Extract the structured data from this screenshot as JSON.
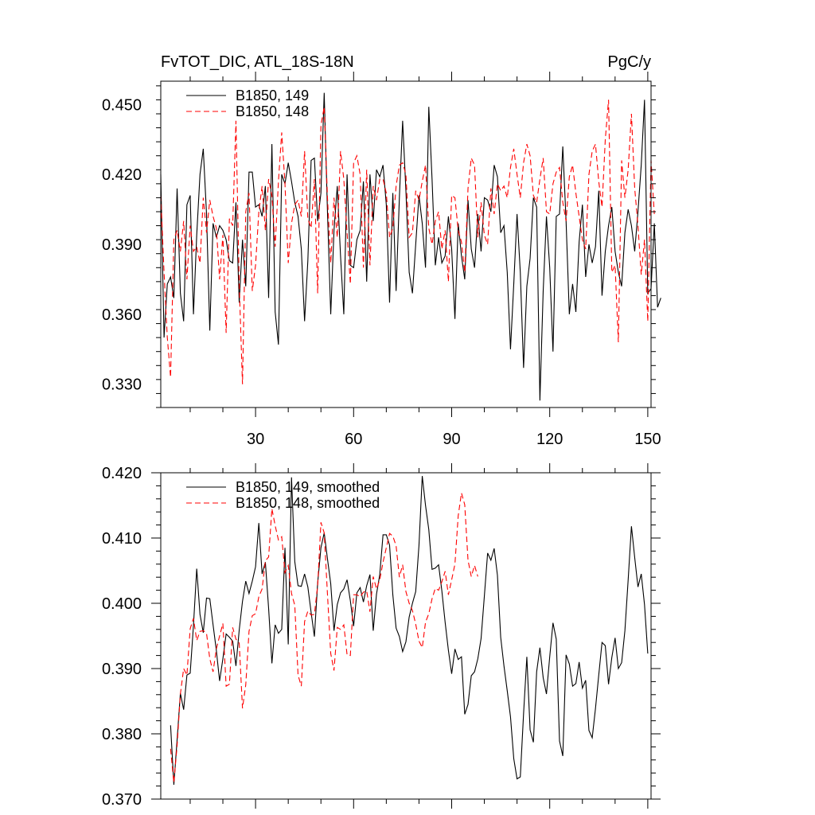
{
  "figure": {
    "title_left": "FvTOT_DIC, ATL_18S-18N",
    "title_right": "PgC/y"
  },
  "colors": {
    "run149": "#000000",
    "run148": "#ff0000"
  },
  "chart_data": [
    {
      "type": "line",
      "xlim": [
        1,
        151
      ],
      "ylim": [
        0.32,
        0.46
      ],
      "xticks": [
        30,
        60,
        90,
        120,
        150
      ],
      "yticks": [
        0.33,
        0.36,
        0.39,
        0.42,
        0.45
      ],
      "ytick_labels": [
        "0.330",
        "0.360",
        "0.390",
        "0.420",
        "0.450"
      ],
      "legend": "top-left",
      "series": [
        {
          "name": "B1850, 149",
          "color": "#000000",
          "dash": "solid",
          "x_start": 1,
          "values": [
            0.42,
            0.35,
            0.373,
            0.376,
            0.367,
            0.414,
            0.369,
            0.357,
            0.407,
            0.411,
            0.36,
            0.394,
            0.42,
            0.431,
            0.403,
            0.353,
            0.399,
            0.393,
            0.398,
            0.396,
            0.392,
            0.383,
            0.382,
            0.408,
            0.365,
            0.392,
            0.372,
            0.421,
            0.421,
            0.406,
            0.407,
            0.402,
            0.415,
            0.367,
            0.433,
            0.361,
            0.347,
            0.42,
            0.416,
            0.425,
            0.417,
            0.408,
            0.402,
            0.388,
            0.357,
            0.383,
            0.426,
            0.427,
            0.4,
            0.412,
            0.455,
            0.404,
            0.36,
            0.396,
            0.415,
            0.385,
            0.36,
            0.42,
            0.381,
            0.38,
            0.392,
            0.396,
            0.417,
            0.374,
            0.42,
            0.4,
            0.422,
            0.419,
            0.424,
            0.407,
            0.365,
            0.412,
            0.37,
            0.41,
            0.443,
            0.413,
            0.378,
            0.369,
            0.39,
            0.411,
            0.399,
            0.38,
            0.449,
            0.418,
            0.381,
            0.393,
            0.382,
            0.385,
            0.402,
            0.388,
            0.358,
            0.399,
            0.385,
            0.375,
            0.409,
            0.388,
            0.38,
            0.403,
            0.387,
            0.41,
            0.409,
            0.404,
            0.424,
            0.419,
            0.395,
            0.398,
            0.378,
            0.345,
            0.373,
            0.403,
            0.378,
            0.337,
            0.372,
            0.384,
            0.41,
            0.406,
            0.323,
            0.37,
            0.402,
            0.38,
            0.344,
            0.402,
            0.403,
            0.432,
            0.4,
            0.36,
            0.373,
            0.361,
            0.391,
            0.407,
            0.376,
            0.39,
            0.382,
            0.389,
            0.413,
            0.368,
            0.387,
            0.398,
            0.406,
            0.387,
            0.378,
            0.372,
            0.395,
            0.405,
            0.398,
            0.387,
            0.404,
            0.424,
            0.452,
            0.369,
            0.371,
            0.399,
            0.363,
            0.367
          ]
        },
        {
          "name": "B1850, 148",
          "color": "#ff0000",
          "dash": "dashed",
          "x_start": 1,
          "values": [
            0.411,
            0.378,
            0.35,
            0.333,
            0.392,
            0.396,
            0.387,
            0.4,
            0.375,
            0.398,
            0.387,
            0.389,
            0.382,
            0.41,
            0.395,
            0.409,
            0.402,
            0.397,
            0.375,
            0.394,
            0.352,
            0.401,
            0.398,
            0.443,
            0.373,
            0.33,
            0.404,
            0.412,
            0.37,
            0.381,
            0.404,
            0.415,
            0.396,
            0.418,
            0.411,
            0.389,
            0.417,
            0.438,
            0.416,
            0.382,
            0.399,
            0.407,
            0.409,
            0.402,
            0.43,
            0.401,
            0.397,
            0.418,
            0.369,
            0.441,
            0.449,
            0.41,
            0.382,
            0.41,
            0.393,
            0.43,
            0.418,
            0.395,
            0.373,
            0.425,
            0.428,
            0.42,
            0.38,
            0.422,
            0.381,
            0.415,
            0.409,
            0.418,
            0.418,
            0.412,
            0.393,
            0.397,
            0.415,
            0.424,
            0.425,
            0.42,
            0.393,
            0.395,
            0.413,
            0.409,
            0.417,
            0.424,
            0.397,
            0.39,
            0.4,
            0.404,
            0.388,
            0.396,
            0.374,
            0.411,
            0.41,
            0.396,
            0.391,
            0.378,
            0.414,
            0.427,
            0.424,
            0.393,
            0.408,
            0.394,
            0.39,
            0.414,
            0.403,
            0.416,
            0.413,
            0.415,
            0.41,
            0.423,
            0.431,
            0.42,
            0.41,
            0.425,
            0.433,
            0.428,
            0.411,
            0.408,
            0.418,
            0.427,
            0.404,
            0.403,
            0.416,
            0.421,
            0.423,
            0.408,
            0.4,
            0.419,
            0.424,
            0.412,
            0.402,
            0.392,
            0.388,
            0.42,
            0.43,
            0.433,
            0.417,
            0.406,
            0.435,
            0.452,
            0.378,
            0.381,
            0.348,
            0.426,
            0.41,
            0.422,
            0.446,
            0.414,
            0.398,
            0.377,
            0.392,
            0.357,
            0.426,
            0.403
          ]
        }
      ]
    },
    {
      "type": "line",
      "xlim": [
        1,
        151
      ],
      "ylim": [
        0.37,
        0.42
      ],
      "xticks": [
        30,
        60,
        90,
        120,
        150
      ],
      "yticks": [
        0.37,
        0.38,
        0.39,
        0.4,
        0.41,
        0.42
      ],
      "ytick_labels": [
        "0.370",
        "0.380",
        "0.390",
        "0.400",
        "0.410",
        "0.420"
      ],
      "legend": "top-left",
      "series": [
        {
          "name": "B1850, 149, smoothed",
          "color": "#000000",
          "dash": "solid",
          "x_start": 4,
          "values": [
            0.3813,
            0.3722,
            0.3791,
            0.3862,
            0.3837,
            0.389,
            0.3893,
            0.3966,
            0.4053,
            0.3983,
            0.3955,
            0.4008,
            0.4007,
            0.3967,
            0.3928,
            0.3881,
            0.3915,
            0.3953,
            0.3948,
            0.3942,
            0.3904,
            0.3959,
            0.4003,
            0.4034,
            0.4015,
            0.4034,
            0.4056,
            0.4123,
            0.4045,
            0.4063,
            0.3992,
            0.3908,
            0.3967,
            0.3954,
            0.396,
            0.4085,
            0.3937,
            0.4193,
            0.4064,
            0.4027,
            0.4026,
            0.4045,
            0.4025,
            0.3986,
            0.3949,
            0.4031,
            0.4085,
            0.4108,
            0.4068,
            0.403,
            0.3958,
            0.3998,
            0.4016,
            0.4022,
            0.4036,
            0.4004,
            0.3965,
            0.4016,
            0.4024,
            0.4002,
            0.4027,
            0.4044,
            0.3958,
            0.4014,
            0.4044,
            0.4105,
            0.4105,
            0.4089,
            0.4013,
            0.3962,
            0.3949,
            0.3926,
            0.3941,
            0.3979,
            0.4,
            0.4018,
            0.4089,
            0.4195,
            0.415,
            0.4113,
            0.4052,
            0.4054,
            0.4059,
            0.4019,
            0.3971,
            0.3928,
            0.3892,
            0.393,
            0.3914,
            0.3918,
            0.383,
            0.3845,
            0.3889,
            0.3895,
            0.3915,
            0.3946,
            0.4011,
            0.4077,
            0.4066,
            0.4084,
            0.4043,
            0.3948,
            0.3904,
            0.3866,
            0.3826,
            0.3762,
            0.3731,
            0.3734,
            0.3831,
            0.3918,
            0.3806,
            0.3787,
            0.3895,
            0.3932,
            0.3886,
            0.3861,
            0.3918,
            0.397,
            0.3945,
            0.3789,
            0.3766,
            0.3921,
            0.3907,
            0.3873,
            0.3877,
            0.391,
            0.387,
            0.3882,
            0.3805,
            0.3794,
            0.3839,
            0.389,
            0.394,
            0.3935,
            0.3876,
            0.3917,
            0.3947,
            0.39,
            0.3909,
            0.3958,
            0.4036,
            0.4118,
            0.407,
            0.4025,
            0.4045,
            0.3998,
            0.3923
          ]
        },
        {
          "name": "B1850, 148, smoothed",
          "color": "#ff0000",
          "dash": "dashed",
          "x_start": 4,
          "values": [
            0.3777,
            0.3725,
            0.3782,
            0.3861,
            0.39,
            0.389,
            0.3961,
            0.3977,
            0.3943,
            0.3957,
            0.3958,
            0.3954,
            0.3915,
            0.3895,
            0.393,
            0.395,
            0.3969,
            0.3873,
            0.3876,
            0.3963,
            0.3945,
            0.3939,
            0.3839,
            0.3875,
            0.3957,
            0.3981,
            0.3984,
            0.401,
            0.4022,
            0.4065,
            0.4071,
            0.4145,
            0.4119,
            0.4097,
            0.4102,
            0.4047,
            0.4058,
            0.4015,
            0.3997,
            0.389,
            0.3873,
            0.3972,
            0.3988,
            0.3982,
            0.3983,
            0.4027,
            0.4124,
            0.4108,
            0.4014,
            0.3923,
            0.3897,
            0.3963,
            0.396,
            0.3967,
            0.3921,
            0.392,
            0.4013,
            0.4013,
            0.401,
            0.4017,
            0.4019,
            0.3987,
            0.4041,
            0.4022,
            0.4036,
            0.4063,
            0.4085,
            0.4107,
            0.4103,
            0.4088,
            0.404,
            0.4059,
            0.4018,
            0.4,
            0.3989,
            0.3968,
            0.3942,
            0.3932,
            0.3971,
            0.3984,
            0.4007,
            0.4023,
            0.402,
            0.4033,
            0.4049,
            0.4013,
            0.4036,
            0.406,
            0.4134,
            0.4169,
            0.4151,
            0.4066,
            0.4041,
            0.4058,
            0.4041
          ]
        }
      ]
    }
  ]
}
